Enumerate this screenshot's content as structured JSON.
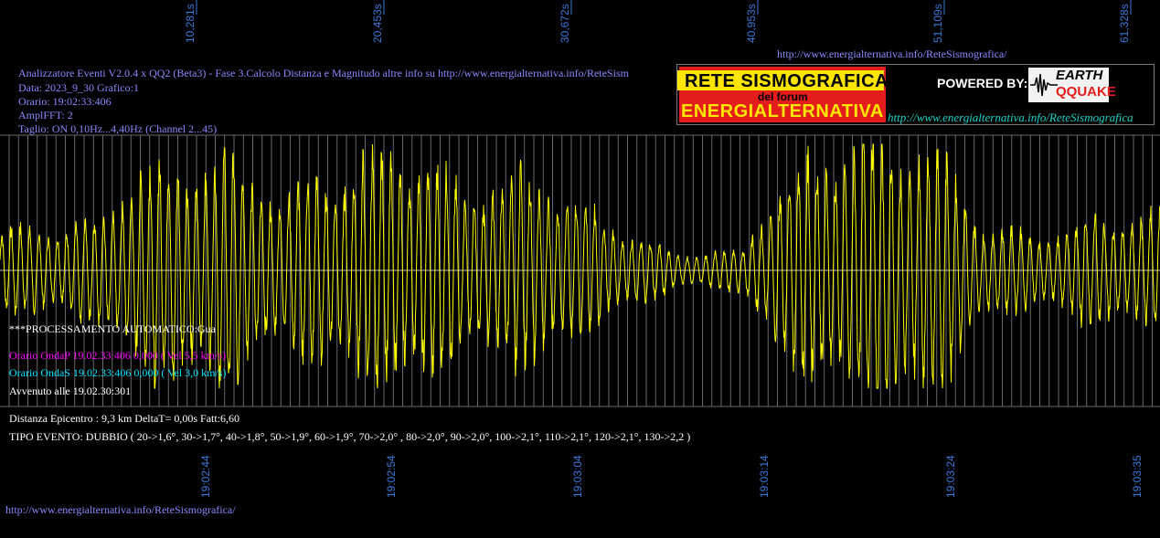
{
  "header": {
    "line1": "Analizzatore Eventi V2.0.4 x QQ2 (Beta3) - Fase 3.Calcolo Distanza e Magnitudo altre info su http://www.energialternativa.info/ReteSism",
    "line2": "Data: 2023_9_30 Grafico:1",
    "line3": "Orario: 19:02:33:406",
    "line4": "AmplFFT: 2",
    "line5": "Taglio: ON 0,10Hz...4,40Hz       (Channel 2...45)",
    "top_url": "http://www.energialternativa.info/ReteSismografica/"
  },
  "logo": {
    "title_top": "RETE SISMOGRAFICA",
    "subtitle": "del forum",
    "title_bottom": "ENERGIALTERNATIVA",
    "powered_by": "POWERED BY:",
    "brand_top": "EARTH",
    "brand_bottom": "QQUAKE",
    "url": "http://www.energialternativa.info/ReteSismografica"
  },
  "info": {
    "processing": "***PROCESSAMENTO AUTOMATICO:Gua",
    "onda_p": "Orario OndaP 19.02.33:406  0,000 ( Vel 5,5 km/s)",
    "onda_s": "Orario OndaS 19.02.33:406  0,000 ( Vel 3,0 km/s)",
    "avvenuto": "Avvenuto alle 19.02.30:301",
    "distanza": "Distanza Epicentro : 9,3 km DeltaT= 0,00s  Fatt:6,60",
    "tipo_evento": "TIPO EVENTO: DUBBIO ( 20->1,6°, 30->1,7°, 40->1,8°, 50->1,9°, 60->1,9°, 70->2,0° , 80->2,0°, 90->2,0°, 100->2,1°, 110->2,1°, 120->2,1°, 130->2,2 )"
  },
  "footer_url": "http://www.energialternativa.info/ReteSismografica/",
  "colors": {
    "trace": "#ffff00",
    "grid": "#6a6a6a",
    "tick_label": "#3a78d8",
    "onda_p": "#ff00ff",
    "onda_s": "#00e5ff",
    "header": "#8a8aff"
  },
  "chart_data": {
    "type": "line",
    "top_ticks": [
      "10,281s",
      "20,453s",
      "30,672s",
      "40,953s",
      "51,109s",
      "61,328s"
    ],
    "bottom_ticks": [
      "19:02:44",
      "19:02:54",
      "19:03:04",
      "19:03:14",
      "19:03:24",
      "19:03:35"
    ],
    "grid": true,
    "series": [
      {
        "envelope_segments": [
          {
            "t": 0.0,
            "amp": 0.3
          },
          {
            "t": 5.0,
            "amp": 0.35
          },
          {
            "t": 7.5,
            "amp": 0.78
          },
          {
            "t": 12.0,
            "amp": 0.86
          },
          {
            "t": 15.5,
            "amp": 0.55
          },
          {
            "t": 17.0,
            "amp": 0.7
          },
          {
            "t": 22.0,
            "amp": 0.92
          },
          {
            "t": 25.0,
            "amp": 0.6
          },
          {
            "t": 29.0,
            "amp": 0.72
          },
          {
            "t": 33.0,
            "amp": 0.35
          },
          {
            "t": 36.5,
            "amp": 0.12
          },
          {
            "t": 40.0,
            "amp": 0.15
          },
          {
            "t": 42.0,
            "amp": 0.68
          },
          {
            "t": 45.0,
            "amp": 0.92
          },
          {
            "t": 48.0,
            "amp": 1.0
          },
          {
            "t": 50.5,
            "amp": 0.88
          },
          {
            "t": 53.0,
            "amp": 0.35
          },
          {
            "t": 56.0,
            "amp": 0.25
          },
          {
            "t": 59.0,
            "amp": 0.4
          },
          {
            "t": 62.5,
            "amp": 0.42
          }
        ]
      }
    ]
  }
}
